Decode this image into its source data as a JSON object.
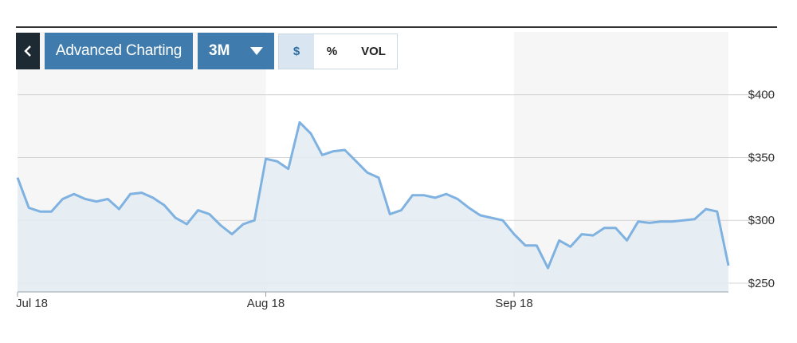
{
  "toolbar": {
    "back_icon": "chevron-left-icon",
    "advanced_label": "Advanced Charting",
    "range_label": "3M",
    "range_caret_icon": "caret-down-icon",
    "segments": [
      "$",
      "%",
      "VOL"
    ],
    "active_segment": "$"
  },
  "colors": {
    "line": "#7fb2e0",
    "fill": "#e3ecf3",
    "button": "#3f7cad",
    "back_button": "#1e2a33",
    "band": "#f6f6f6"
  },
  "chart_data": {
    "type": "area",
    "x_tick_labels": [
      "Jul 18",
      "Aug 18",
      "Sep 18"
    ],
    "y_tick_labels": [
      "$250",
      "$300",
      "$350",
      "$400"
    ],
    "y_ticks": [
      250,
      300,
      350,
      400
    ],
    "ylim": [
      243,
      450
    ],
    "grid": true,
    "y_axis_side": "right",
    "series": [
      {
        "values": [
          334,
          310,
          307,
          307,
          317,
          321,
          317,
          315,
          317,
          309,
          321,
          322,
          318,
          312,
          302,
          297,
          308,
          305,
          296,
          289,
          297,
          300,
          349,
          347,
          341,
          378,
          369,
          352,
          355,
          356,
          347,
          338,
          334,
          305,
          308,
          320,
          320,
          318,
          321,
          317,
          310,
          304,
          302,
          300,
          289,
          280,
          280,
          262,
          284,
          279,
          289,
          288,
          294,
          294,
          284,
          299,
          298,
          299,
          299,
          300,
          301,
          309,
          307,
          264
        ]
      }
    ]
  }
}
